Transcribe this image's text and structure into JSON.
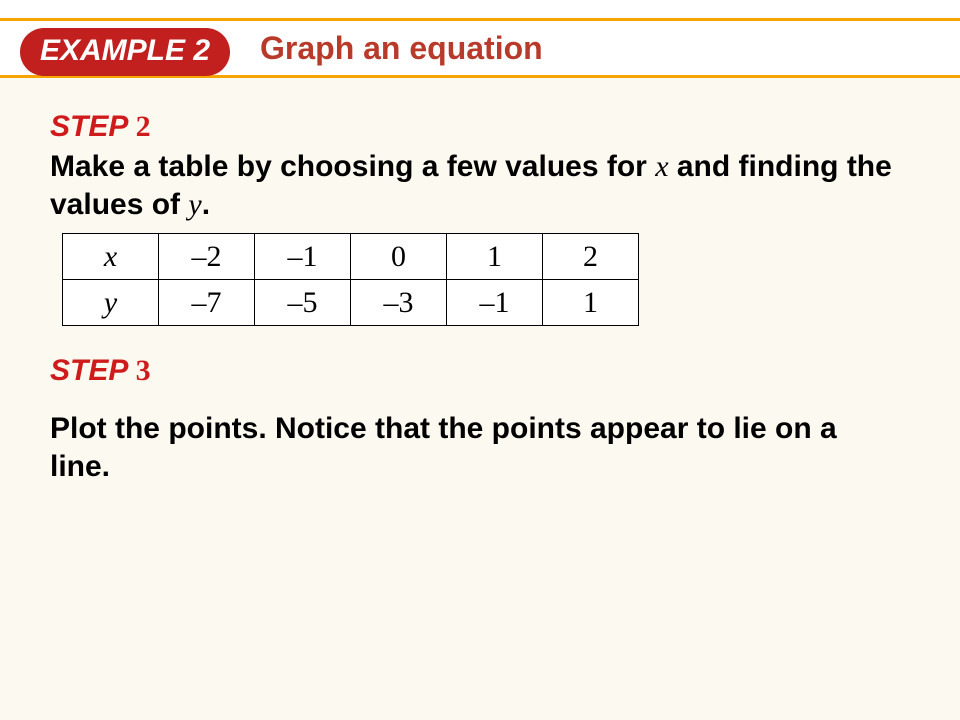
{
  "colors": {
    "header_border": "#f7a300",
    "badge_bg": "#c21f1f",
    "badge_text": "#ffffff",
    "title_text": "#b83a2a",
    "step_label": "#cf1b1b",
    "slide_bg": "#fcf9f0"
  },
  "header": {
    "badge": "EXAMPLE 2",
    "title": "Graph an equation"
  },
  "step2": {
    "label_word": "STEP",
    "label_num": "2",
    "text_before_x": "Make a table by choosing a few values for ",
    "var_x": "x",
    "text_mid": " and finding the values of ",
    "var_y": "y",
    "text_after": "."
  },
  "table": {
    "row_x_header": "x",
    "row_y_header": "y",
    "x_values": [
      "–2",
      "–1",
      "0",
      "1",
      "2"
    ],
    "y_values": [
      "–7",
      "–5",
      "–3",
      "–1",
      "1"
    ]
  },
  "step3": {
    "label_word": "STEP",
    "label_num": "3",
    "text": "Plot the points. Notice that the points appear to lie on a line."
  }
}
